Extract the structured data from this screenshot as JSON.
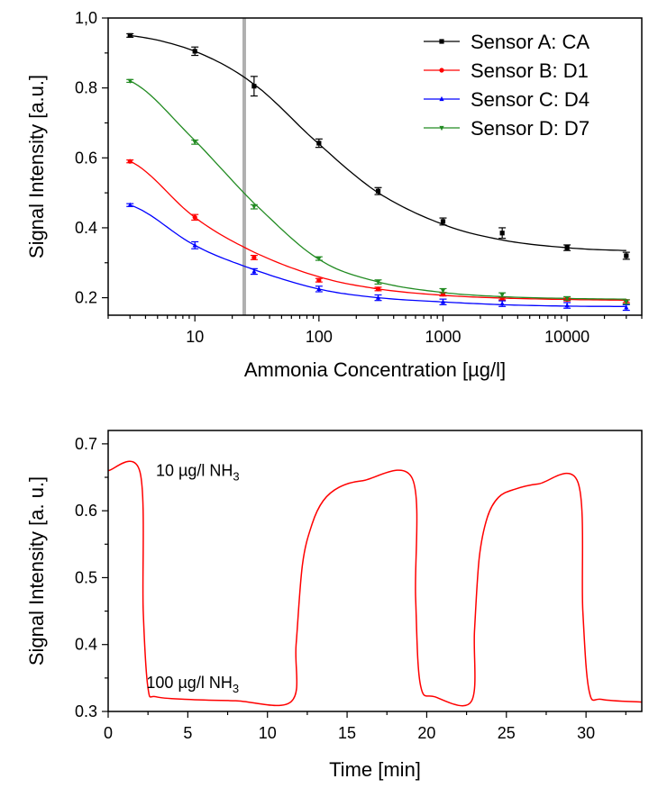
{
  "chart_data": [
    {
      "type": "scatter",
      "title": "",
      "xlabel": "Ammonia Concentration [µg/l]",
      "ylabel": "Signal Intensity [a.u.]",
      "xscale": "log",
      "xlim": [
        2,
        40000
      ],
      "ylim": [
        0.15,
        1.0
      ],
      "x_ticks": [
        10,
        100,
        1000,
        10000
      ],
      "x_tick_labels": [
        "10",
        "100",
        "1000",
        "10000"
      ],
      "y_ticks": [
        0.2,
        0.4,
        0.6,
        0.8,
        1.0
      ],
      "y_tick_labels": [
        "0.2",
        "0.4",
        "0.6",
        "0.8",
        "1,0"
      ],
      "legend_position": "top-right",
      "marker_line": {
        "x": 25,
        "color": "#b0b0b0"
      },
      "x": [
        3,
        10,
        30,
        100,
        300,
        1000,
        3000,
        10000,
        30000
      ],
      "series": [
        {
          "name": "Sensor A: CA",
          "color": "#000000",
          "marker": "square",
          "values": [
            0.95,
            0.905,
            0.805,
            0.642,
            0.505,
            0.418,
            0.385,
            0.343,
            0.32
          ],
          "errors": [
            0.005,
            0.012,
            0.028,
            0.012,
            0.01,
            0.01,
            0.015,
            0.008,
            0.01
          ],
          "fit": [
            0.95,
            0.905,
            0.81,
            0.64,
            0.5,
            0.41,
            0.365,
            0.343,
            0.335
          ]
        },
        {
          "name": "Sensor B: D1",
          "color": "#ff0000",
          "marker": "circle",
          "values": [
            0.59,
            0.43,
            0.315,
            0.25,
            0.225,
            0.21,
            0.198,
            0.195,
            0.19
          ],
          "errors": [
            0.004,
            0.008,
            0.006,
            0.005,
            0.005,
            0.005,
            0.004,
            0.004,
            0.004
          ],
          "fit": [
            0.59,
            0.43,
            0.33,
            0.26,
            0.225,
            0.207,
            0.199,
            0.195,
            0.193
          ]
        },
        {
          "name": "Sensor C: D4",
          "color": "#0000ff",
          "marker": "triangle-up",
          "values": [
            0.465,
            0.35,
            0.275,
            0.225,
            0.2,
            0.188,
            0.183,
            0.178,
            0.172
          ],
          "errors": [
            0.004,
            0.01,
            0.008,
            0.008,
            0.008,
            0.008,
            0.008,
            0.008,
            0.008
          ],
          "fit": [
            0.465,
            0.35,
            0.28,
            0.225,
            0.2,
            0.188,
            0.18,
            0.176,
            0.175
          ]
        },
        {
          "name": "Sensor D: D7",
          "color": "#228b22",
          "marker": "triangle-down",
          "values": [
            0.82,
            0.645,
            0.46,
            0.312,
            0.245,
            0.22,
            0.208,
            0.198,
            0.188
          ],
          "errors": [
            0.004,
            0.006,
            0.006,
            0.005,
            0.006,
            0.006,
            0.006,
            0.005,
            0.006
          ],
          "fit": [
            0.82,
            0.65,
            0.47,
            0.31,
            0.245,
            0.215,
            0.203,
            0.198,
            0.196
          ]
        }
      ]
    },
    {
      "type": "line",
      "title": "",
      "xlabel": "Time [min]",
      "ylabel": "Signal Intensity [a. u.]",
      "xlim": [
        0,
        33.5
      ],
      "ylim": [
        0.3,
        0.72
      ],
      "x_ticks": [
        0,
        5,
        10,
        15,
        20,
        25,
        30
      ],
      "y_ticks": [
        0.3,
        0.4,
        0.5,
        0.6,
        0.7
      ],
      "y_tick_labels": [
        "0.3",
        "0.4",
        "0.5",
        "0.6",
        "0.7"
      ],
      "annotations": [
        {
          "text": "10 µg/l NH",
          "sub": "3",
          "x": 3,
          "y": 0.652
        },
        {
          "text": "100 µg/l NH",
          "sub": "3",
          "x": 2.4,
          "y": 0.335
        }
      ],
      "series": [
        {
          "name": "",
          "color": "#ff0000",
          "x": [
            0,
            2.0,
            2.2,
            2.5,
            3.0,
            5,
            8,
            11.5,
            11.8,
            12.2,
            12.8,
            13.5,
            14.5,
            16,
            19.1,
            19.3,
            19.6,
            20.5,
            22.8,
            23.0,
            23.3,
            23.8,
            24.5,
            25.5,
            27,
            29.5,
            29.8,
            30.2,
            31,
            33.5
          ],
          "values": [
            0.66,
            0.658,
            0.45,
            0.335,
            0.322,
            0.318,
            0.316,
            0.315,
            0.4,
            0.52,
            0.58,
            0.615,
            0.635,
            0.645,
            0.648,
            0.47,
            0.34,
            0.322,
            0.315,
            0.42,
            0.53,
            0.59,
            0.62,
            0.632,
            0.64,
            0.642,
            0.45,
            0.33,
            0.318,
            0.314
          ]
        }
      ]
    }
  ]
}
